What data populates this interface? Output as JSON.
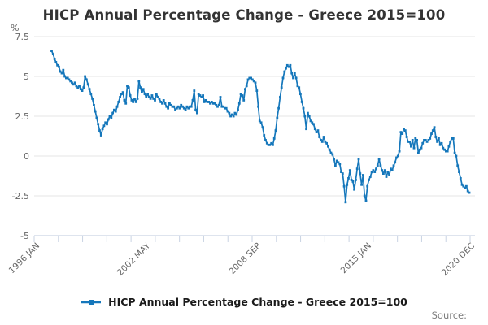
{
  "title": "HICP Annual Percentage Change - Greece 2015=100",
  "legend": {
    "label": "HICP Annual Percentage Change - Greece 2015=100"
  },
  "source": {
    "label": "Source:"
  },
  "colors": {
    "line": "#1577bb",
    "grid": "#e4e4e4",
    "axis": "#c9d3e3",
    "tick_text": "#666666",
    "title_text": "#333333",
    "legend_text": "#1a1a1a",
    "source_text": "#7d7d7d"
  },
  "chart_data": {
    "type": "line",
    "title": "HICP Annual Percentage Change - Greece 2015=100",
    "unit": "%",
    "grid": "horizontal",
    "legend_position": "bottom",
    "marker": "square",
    "y_axis": {
      "unit": "%",
      "ticks": [
        7.5,
        5,
        2.5,
        0,
        -2.5,
        -5
      ],
      "range": [
        -5,
        7.5
      ]
    },
    "x_axis": {
      "start": "1996-01",
      "end": "2020-12",
      "minor_tick_count": 19,
      "tick_labels": [
        {
          "label": "1996 JAN",
          "month_index": 0
        },
        {
          "label": "2002 MAY",
          "month_index": 76
        },
        {
          "label": "2008 SEP",
          "month_index": 152
        },
        {
          "label": "2015 JAN",
          "month_index": 228
        },
        {
          "label": "2020 DEC",
          "month_index": 299
        }
      ]
    },
    "series": [
      {
        "name": "HICP Annual Percentage Change - Greece 2015=100",
        "start": "1997-01",
        "frequency": "monthly",
        "values": [
          6.6,
          6.4,
          6.1,
          5.9,
          5.7,
          5.6,
          5.3,
          5.2,
          5.4,
          5.0,
          4.9,
          4.9,
          4.8,
          4.7,
          4.6,
          4.5,
          4.6,
          4.4,
          4.3,
          4.4,
          4.2,
          4.1,
          4.3,
          5.0,
          4.8,
          4.5,
          4.2,
          3.9,
          3.6,
          3.2,
          2.8,
          2.4,
          2.0,
          1.6,
          1.3,
          1.7,
          1.9,
          2.1,
          2.0,
          2.3,
          2.5,
          2.4,
          2.7,
          2.9,
          2.8,
          3.1,
          3.4,
          3.7,
          3.9,
          4.0,
          3.5,
          3.3,
          4.4,
          4.3,
          3.8,
          3.5,
          3.4,
          3.6,
          3.4,
          3.6,
          4.7,
          4.3,
          4.0,
          4.2,
          3.9,
          3.7,
          3.9,
          3.7,
          3.6,
          3.8,
          3.6,
          3.5,
          3.9,
          3.7,
          3.6,
          3.4,
          3.3,
          3.5,
          3.3,
          3.1,
          3.0,
          3.3,
          3.2,
          3.1,
          3.1,
          2.9,
          3.0,
          3.1,
          3.0,
          3.2,
          3.1,
          3.0,
          2.9,
          3.1,
          3.0,
          3.1,
          3.1,
          3.5,
          4.1,
          2.9,
          2.7,
          3.9,
          3.8,
          3.7,
          3.8,
          3.4,
          3.5,
          3.4,
          3.4,
          3.3,
          3.4,
          3.3,
          3.3,
          3.2,
          3.1,
          3.2,
          3.7,
          3.1,
          3.1,
          3.0,
          3.0,
          2.8,
          2.7,
          2.5,
          2.6,
          2.5,
          2.7,
          2.6,
          2.9,
          3.3,
          3.9,
          3.8,
          3.5,
          4.2,
          4.4,
          4.8,
          4.9,
          4.9,
          4.8,
          4.7,
          4.6,
          4.1,
          3.1,
          2.2,
          2.1,
          1.8,
          1.3,
          1.0,
          0.8,
          0.7,
          0.7,
          0.8,
          0.7,
          1.1,
          1.6,
          2.4,
          3.0,
          3.7,
          4.3,
          4.9,
          5.3,
          5.5,
          5.7,
          5.6,
          5.7,
          5.2,
          4.9,
          5.2,
          4.9,
          4.4,
          4.3,
          3.9,
          3.4,
          3.0,
          2.5,
          1.7,
          2.7,
          2.5,
          2.2,
          2.1,
          2.0,
          1.7,
          1.5,
          1.6,
          1.2,
          1.0,
          0.9,
          1.2,
          0.9,
          0.8,
          0.6,
          0.4,
          0.2,
          0.1,
          -0.2,
          -0.6,
          -0.3,
          -0.4,
          -0.5,
          -1.0,
          -1.1,
          -1.9,
          -2.9,
          -1.8,
          -1.4,
          -0.9,
          -1.5,
          -1.6,
          -2.1,
          -1.5,
          -0.8,
          -0.2,
          -1.1,
          -1.8,
          -1.2,
          -2.5,
          -2.8,
          -1.9,
          -1.5,
          -1.3,
          -1.0,
          -0.9,
          -1.0,
          -0.8,
          -0.6,
          -0.2,
          -0.6,
          -0.9,
          -1.1,
          -0.9,
          -1.3,
          -1.0,
          -1.2,
          -0.8,
          -0.9,
          -0.6,
          -0.4,
          -0.1,
          0.0,
          0.3,
          1.5,
          1.4,
          1.7,
          1.6,
          1.2,
          0.9,
          0.9,
          0.6,
          1.0,
          0.5,
          1.1,
          1.0,
          0.2,
          0.4,
          0.5,
          0.8,
          1.0,
          1.0,
          0.9,
          1.0,
          1.1,
          1.4,
          1.6,
          1.8,
          1.2,
          0.9,
          1.1,
          0.7,
          0.8,
          0.5,
          0.4,
          0.3,
          0.3,
          0.6,
          0.9,
          1.1,
          1.1,
          0.2,
          0.0,
          -0.6,
          -1.0,
          -1.4,
          -1.8,
          -1.9,
          -2.0,
          -1.9,
          -2.2,
          -2.3
        ]
      }
    ]
  }
}
